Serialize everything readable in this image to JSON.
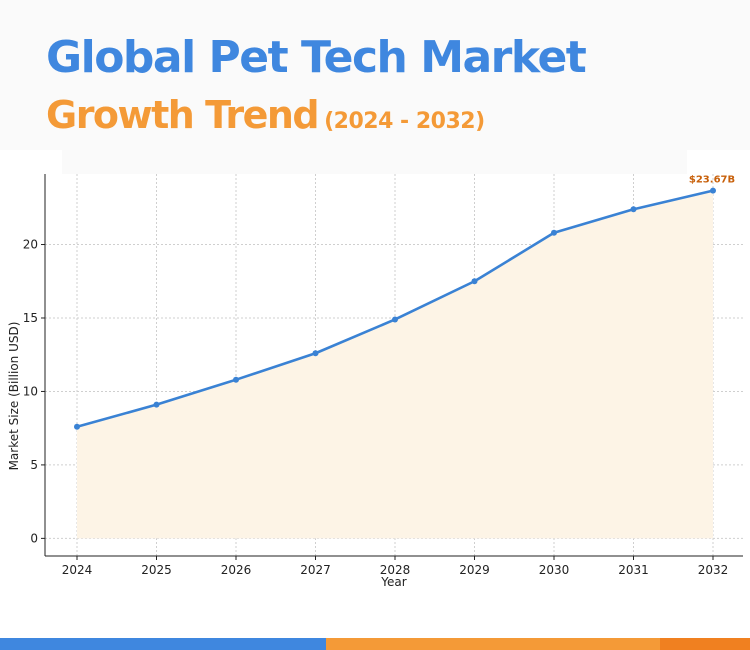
{
  "header": {
    "title_line1": "Global Pet Tech Market",
    "title_line2": "Growth Trend",
    "title_range": "(2024 - 2032)"
  },
  "colors": {
    "blue": "#3f87df",
    "orange": "#f49a37",
    "dark_orange": "#f08020",
    "line": "#3a82d4",
    "fill": "#fdf4e6",
    "annotation": "#c8600a"
  },
  "chart_data": {
    "type": "area",
    "x": [
      "2024",
      "2025",
      "2026",
      "2027",
      "2028",
      "2029",
      "2030",
      "2031",
      "2032"
    ],
    "values": [
      7.6,
      9.1,
      10.8,
      12.6,
      14.9,
      17.5,
      20.8,
      22.4,
      23.67
    ],
    "xlabel": "Year",
    "ylabel": "Market Size (Billion USD)",
    "yticks": [
      0,
      5,
      10,
      15,
      20
    ],
    "ylim": [
      -1.2,
      24.8
    ],
    "grid": true,
    "annotation": "$23.67B"
  }
}
